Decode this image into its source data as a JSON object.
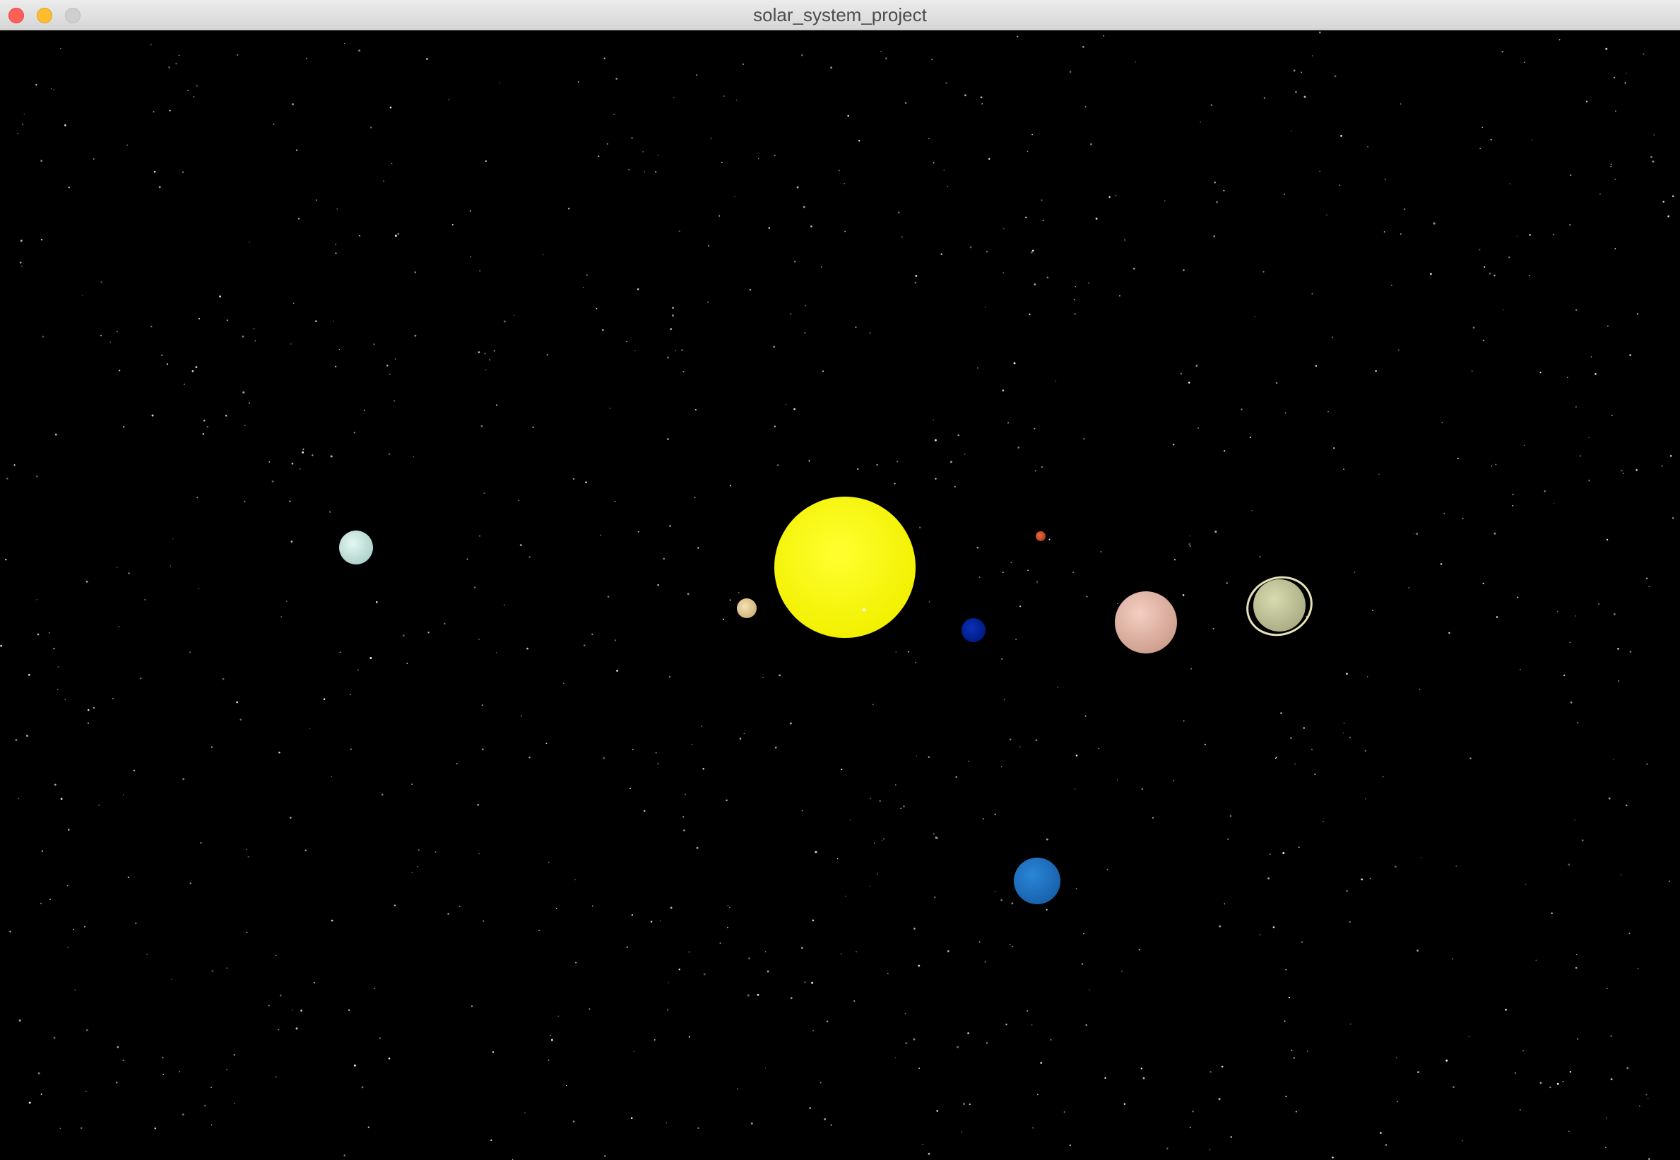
{
  "window": {
    "title": "solar_system_project"
  },
  "scene": {
    "background": "#000000",
    "bodies": [
      {
        "name": "sun",
        "color": "#ffff00",
        "highlight": "#ffff40"
      },
      {
        "name": "mercury",
        "color": "#e8d09a"
      },
      {
        "name": "venus",
        "color": "#001f9e"
      },
      {
        "name": "mars-small",
        "color": "#d0502a"
      },
      {
        "name": "jupiter",
        "color": "#e8b8a8"
      },
      {
        "name": "saturn",
        "color": "#c9cc9e",
        "ring": "#e6e2b8"
      },
      {
        "name": "uranus",
        "color": "#cfeee8"
      },
      {
        "name": "neptune",
        "color": "#1f72c4"
      }
    ],
    "star_color": "#ffffff"
  }
}
